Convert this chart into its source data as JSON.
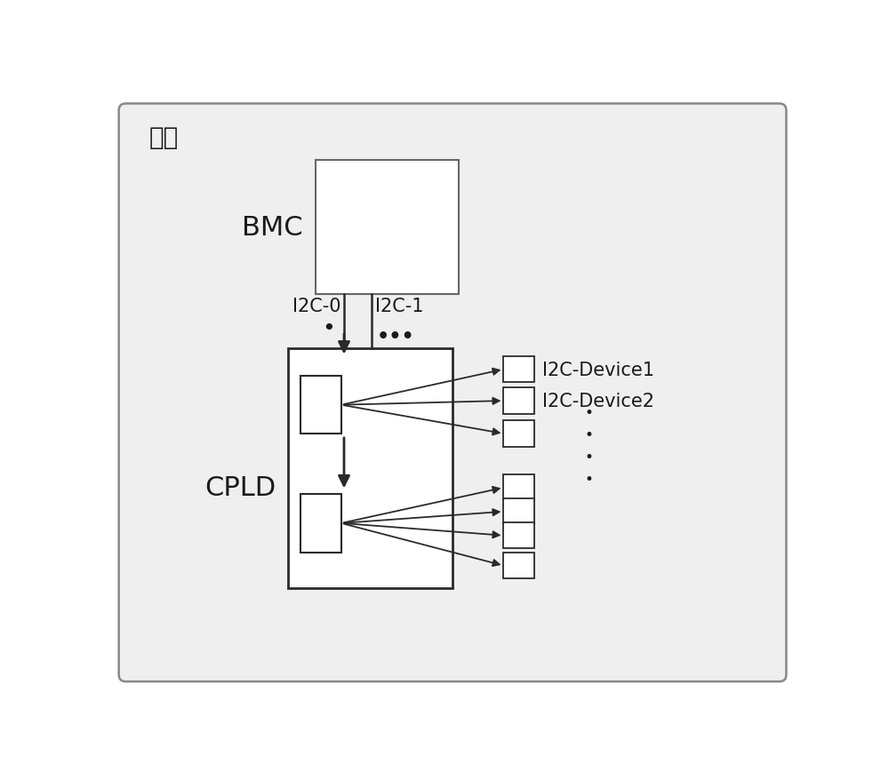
{
  "bg_color": "#e8e8e8",
  "inner_bg": "#ffffff",
  "title": "主板",
  "title_fontsize": 20,
  "label_bmc": "BMC",
  "label_cpld": "CPLD",
  "label_i2c0": "I2C-0",
  "label_i2c1": "I2C-1",
  "label_dots_top": "•••",
  "label_dot_left": "•",
  "label_device1": "I2C-Device1",
  "label_device2": "I2C-Device2",
  "line_color": "#2a2a2a",
  "box_color": "#2a2a2a",
  "text_color": "#1a1a1a",
  "fontsize_bmc_cpld": 22,
  "fontsize_i2c": 15,
  "fontsize_device": 15
}
